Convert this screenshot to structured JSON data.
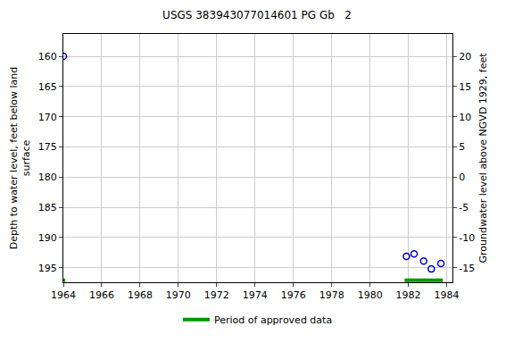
{
  "chart_data": {
    "type": "scatter",
    "title": "USGS 383943077014601 PG Gb   2",
    "y_label": "Depth to water level, feet below land\nsurface",
    "y2_label": "Groundwater level above NGVD 1929, feet",
    "x": [
      1964.0,
      1981.9,
      1982.3,
      1982.8,
      1983.2,
      1983.7
    ],
    "values": [
      160.0,
      193.1,
      192.7,
      193.9,
      195.2,
      194.3
    ],
    "color": "#0000cc",
    "marker": "open circle",
    "xlim": [
      1964,
      1984.3
    ],
    "xticks": [
      1964,
      1966,
      1968,
      1970,
      1972,
      1974,
      1976,
      1978,
      1980,
      1982,
      1984
    ],
    "ylim": [
      197.4,
      156.3
    ],
    "yticks": [
      160,
      165,
      170,
      175,
      180,
      185,
      190,
      195
    ],
    "y2lim": [
      -17.4,
      23.7
    ],
    "y2ticks": [
      20,
      15,
      10,
      5,
      0,
      -5,
      -10,
      -15
    ],
    "grid": true,
    "legend": "bottom",
    "approved_periods": {
      "name": "Period of approved data",
      "color": "#009900",
      "ranges": [
        [
          1964.0,
          1964.1
        ],
        [
          1981.8,
          1983.8
        ]
      ]
    }
  }
}
